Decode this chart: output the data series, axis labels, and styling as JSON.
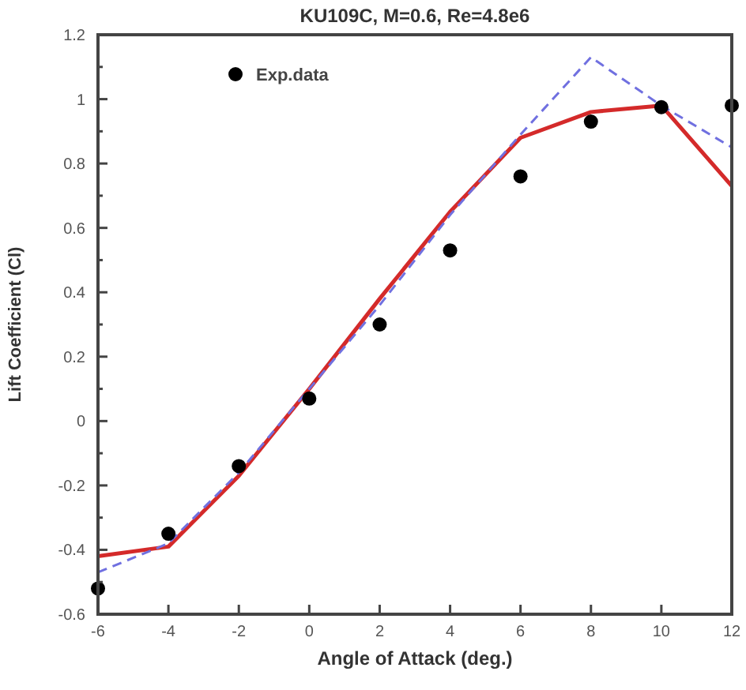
{
  "chart_data": {
    "type": "line",
    "title": "KU109C, M=0.6, Re=4.8e6",
    "xlabel": "Angle of Attack (deg.)",
    "ylabel": "Lift Coefficient (Cl)",
    "x": [
      -6,
      -4,
      -2,
      0,
      2,
      4,
      6,
      8,
      10,
      12
    ],
    "series": [
      {
        "color": "#d42a2a",
        "line_style": "solid",
        "marker": "none",
        "values": [
          -0.42,
          -0.39,
          -0.17,
          0.1,
          0.38,
          0.65,
          0.88,
          0.96,
          0.98,
          0.73
        ]
      },
      {
        "color": "#7070e0",
        "line_style": "dashed",
        "marker": "none",
        "values": [
          -0.47,
          -0.38,
          -0.16,
          0.1,
          0.36,
          0.64,
          0.89,
          1.13,
          0.98,
          0.85
        ]
      },
      {
        "name": "Exp.data",
        "type": "scatter",
        "color": "#000000",
        "marker": "circle",
        "values": [
          -0.52,
          -0.35,
          -0.14,
          0.07,
          0.3,
          0.53,
          0.76,
          0.93,
          0.975,
          0.98
        ]
      }
    ],
    "xlim": [
      -6,
      12
    ],
    "xticks": [
      -6,
      -4,
      -2,
      0,
      2,
      4,
      6,
      8,
      10,
      12
    ],
    "ylim": [
      -0.6,
      1.2
    ],
    "yticks": [
      -0.6,
      {
        "value": -0.5,
        "label": null
      },
      -0.4,
      {
        "value": -0.3,
        "label": null
      },
      -0.2,
      {
        "value": -0.1,
        "label": null
      },
      0,
      {
        "value": 0.1,
        "label": null
      },
      0.2,
      {
        "value": 0.3,
        "label": null
      },
      0.4,
      {
        "value": 0.5,
        "label": null
      },
      0.6,
      {
        "value": 0.7,
        "label": null
      },
      0.8,
      {
        "value": 0.9,
        "label": null
      },
      1,
      {
        "value": 1.1,
        "label": null
      },
      1.2
    ],
    "grid": false,
    "legend": "top left"
  }
}
